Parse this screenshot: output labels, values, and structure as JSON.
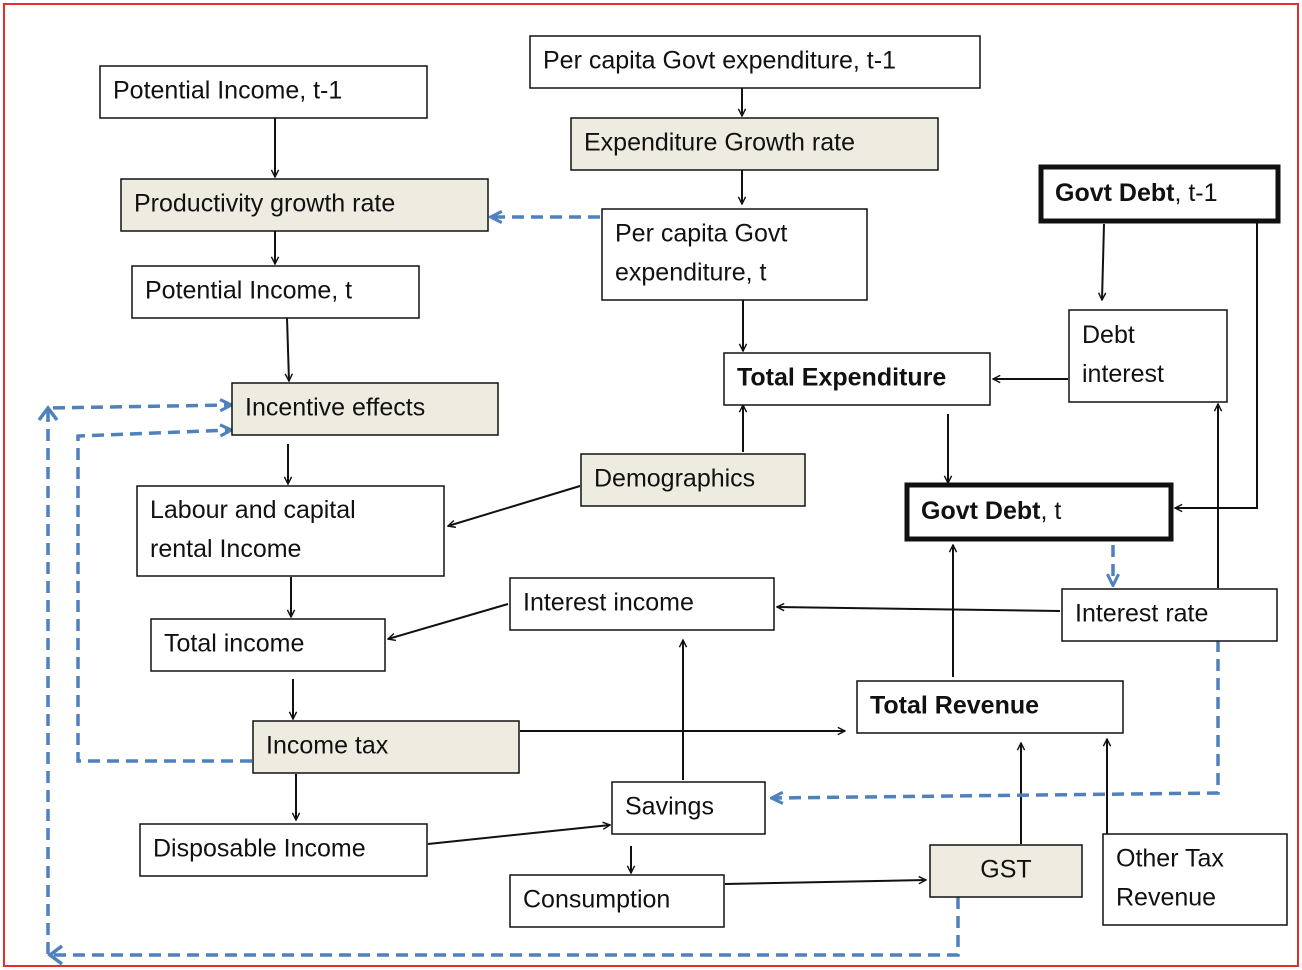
{
  "nodes": [
    {
      "lines": [
        "Potential Income, t-1"
      ]
    },
    {
      "lines": [
        "Productivity growth rate"
      ]
    },
    {
      "lines": [
        "Potential Income, t"
      ]
    },
    {
      "lines": [
        "Incentive effects"
      ]
    },
    {
      "lines": [
        "Labour and capital",
        "rental Income"
      ]
    },
    {
      "lines": [
        "Total income"
      ]
    },
    {
      "lines": [
        "Income tax"
      ]
    },
    {
      "lines": [
        "Disposable Income"
      ]
    },
    {
      "lines": [
        "Per capita Govt expenditure, t-1"
      ]
    },
    {
      "lines": [
        "Expenditure Growth rate"
      ]
    },
    {
      "lines": [
        "Per capita Govt",
        "expenditure, t"
      ]
    },
    {
      "lines": [
        "Total Expenditure"
      ]
    },
    {
      "lines": [
        "Demographics"
      ]
    },
    {
      "lines": [
        "Interest income"
      ]
    },
    {
      "lines": [
        "Savings"
      ]
    },
    {
      "lines": [
        "Consumption"
      ]
    },
    {
      "bold": "Govt Debt",
      "rest": ", t-1"
    },
    {
      "lines": [
        "Debt",
        "interest"
      ]
    },
    {
      "bold": "Govt Debt",
      "rest": ", t"
    },
    {
      "lines": [
        "Interest rate"
      ]
    },
    {
      "lines": [
        "Total Revenue"
      ]
    },
    {
      "lines": [
        "GST"
      ]
    },
    {
      "lines": [
        "Other Tax",
        "Revenue"
      ]
    }
  ]
}
